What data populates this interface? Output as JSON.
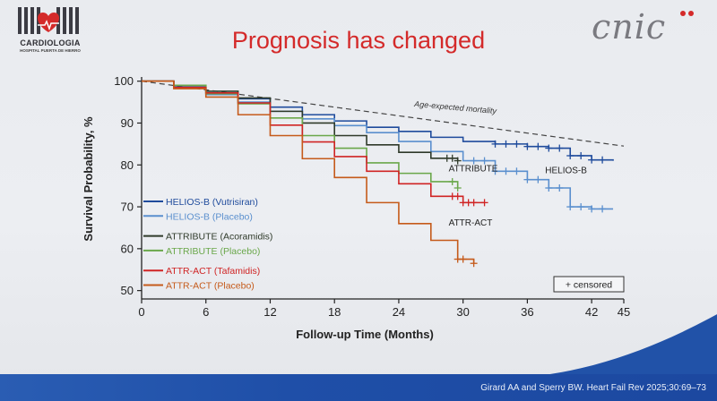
{
  "slide": {
    "title": "Prognosis has changed",
    "logo_left": {
      "name": "CARDIOLOGIA",
      "subtitle": "HOSPITAL PUERTA DE HIERRO"
    },
    "logo_right": {
      "name": "cnic",
      "accent_color": "#d42a2a"
    },
    "citation": "Girard AA and Sperry BW. Heart Fail Rev 2025;30:69–73",
    "colors": {
      "title": "#d42a2a",
      "footer_bar": "#2152a8"
    }
  },
  "chart_data": {
    "type": "line",
    "xlabel": "Follow-up Time (Months)",
    "ylabel": "Survival Probability, %",
    "xlim": [
      0,
      45
    ],
    "ylim": [
      48,
      101
    ],
    "xticks": [
      0,
      6,
      12,
      18,
      24,
      30,
      36,
      42,
      45
    ],
    "yticks": [
      50,
      60,
      70,
      80,
      90,
      100
    ],
    "grid": false,
    "legend_position": "left",
    "reference_line": {
      "label": "Age-expected mortality",
      "x": [
        0,
        45
      ],
      "y": [
        100,
        84.5
      ],
      "style": "dashed"
    },
    "annotations": [
      {
        "text": "ATTRIBUTE",
        "x": 30.5,
        "y": 78.5
      },
      {
        "text": "HELIOS-B",
        "x": 39.5,
        "y": 78
      },
      {
        "text": "ATTR-ACT",
        "x": 30.5,
        "y": 65.5
      }
    ],
    "censored_legend": "+ censored",
    "series": [
      {
        "name": "HELIOS-B (Vutrisiran)",
        "color": "#1f4b9c",
        "x": [
          0,
          3,
          6,
          9,
          12,
          15,
          18,
          21,
          24,
          27,
          30,
          33,
          36,
          38,
          40,
          42,
          44
        ],
        "y": [
          100,
          98.6,
          97.2,
          95.8,
          93.8,
          92,
          90.5,
          89,
          88,
          86.6,
          85.6,
          85,
          84.4,
          84,
          82.2,
          81.2,
          81
        ],
        "censor_x": [
          33,
          34,
          35,
          36,
          37,
          38,
          39,
          40,
          41,
          42,
          43
        ]
      },
      {
        "name": "HELIOS-B (Placebo)",
        "color": "#5a8fce",
        "x": [
          0,
          3,
          6,
          9,
          12,
          15,
          18,
          21,
          24,
          27,
          30,
          33,
          36,
          38,
          40,
          42,
          44
        ],
        "y": [
          100,
          98.4,
          96.8,
          95,
          92.8,
          91,
          89.4,
          87.7,
          85.6,
          83.2,
          81,
          78.5,
          76.5,
          74.5,
          70,
          69.5,
          69.5
        ],
        "censor_x": [
          31,
          32,
          33,
          34,
          35,
          36,
          37,
          38,
          39,
          40,
          41,
          42,
          43
        ]
      },
      {
        "name": "ATTRIBUTE (Acoramidis)",
        "color": "#2f3a2a",
        "x": [
          0,
          3,
          6,
          9,
          12,
          15,
          18,
          21,
          24,
          27,
          29.5
        ],
        "y": [
          100,
          99,
          97.6,
          96,
          92.8,
          90,
          87,
          84.8,
          83,
          81.6,
          81
        ],
        "censor_x": [
          28.5,
          29,
          29.5
        ]
      },
      {
        "name": "ATTRIBUTE (Placebo)",
        "color": "#6aa74a",
        "x": [
          0,
          3,
          6,
          9,
          12,
          15,
          18,
          21,
          24,
          27,
          29.5
        ],
        "y": [
          100,
          99,
          97,
          94.6,
          91.2,
          87,
          84,
          80.5,
          78,
          76,
          74.5
        ],
        "censor_x": [
          29,
          29.5
        ]
      },
      {
        "name": "ATTR-ACT (Tafamidis)",
        "color": "#d02424",
        "x": [
          0,
          3,
          6,
          9,
          12,
          15,
          18,
          21,
          24,
          27,
          30,
          32
        ],
        "y": [
          100,
          98.5,
          97.2,
          94.8,
          89.5,
          85.5,
          82,
          78.5,
          75.5,
          72.5,
          71,
          71
        ],
        "censor_x": [
          29,
          29.5,
          30,
          30.5,
          31,
          32
        ]
      },
      {
        "name": "ATTR-ACT (Placebo)",
        "color": "#c55a1a",
        "x": [
          0,
          3,
          6,
          9,
          12,
          15,
          18,
          21,
          24,
          27,
          29.5,
          31
        ],
        "y": [
          100,
          98.2,
          96.2,
          92,
          87,
          81.5,
          77,
          71,
          66,
          62,
          57.5,
          56.5
        ],
        "censor_x": [
          29.5,
          30,
          31
        ]
      }
    ]
  }
}
